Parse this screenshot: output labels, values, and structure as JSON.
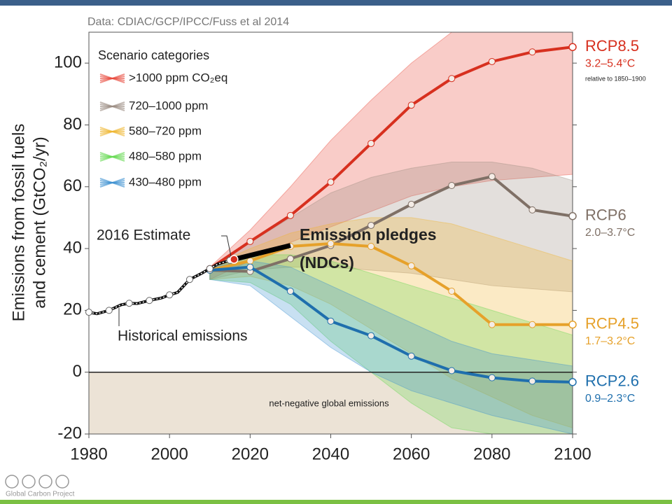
{
  "chart_data": {
    "type": "line",
    "source": "Data: CDIAC/GCP/IPCC/Fuss et al 2014",
    "ylabel": [
      "Emissions from fossil fuels",
      "and cement (GtCO₂/yr)"
    ],
    "xlim": [
      1980,
      2100
    ],
    "ylim": [
      -20,
      110
    ],
    "xticks": [
      1980,
      2000,
      2020,
      2040,
      2060,
      2080,
      2100
    ],
    "yticks": [
      -20,
      0,
      20,
      40,
      60,
      80,
      100
    ],
    "legend_title": "Scenario categories",
    "band_x": [
      2010,
      2020,
      2030,
      2040,
      2050,
      2060,
      2070,
      2080,
      2090,
      2100
    ],
    "bands": [
      {
        "name": ">1000 ppm CO₂eq",
        "color": "#e8483a",
        "low": [
          30,
          36,
          42,
          47,
          52,
          57,
          60,
          62,
          63,
          64
        ],
        "high": [
          34,
          46,
          60,
          75,
          88,
          100,
          110,
          110,
          110,
          110
        ]
      },
      {
        "name": "720–1000 ppm",
        "color": "#9a8b80",
        "low": [
          30,
          33,
          34,
          34,
          33,
          32,
          30,
          28,
          27,
          26
        ],
        "high": [
          34,
          42,
          50,
          58,
          63,
          66,
          68,
          68,
          66,
          62
        ]
      },
      {
        "name": "580–720 ppm",
        "color": "#efb52f",
        "low": [
          30,
          31,
          28,
          22,
          14,
          6,
          -2,
          -8,
          -14,
          -18
        ],
        "high": [
          34,
          40,
          45,
          48,
          50,
          50,
          48,
          44,
          40,
          36
        ]
      },
      {
        "name": "480–580 ppm",
        "color": "#63d84f",
        "low": [
          30,
          29,
          22,
          10,
          0,
          -10,
          -18,
          -20,
          -20,
          -20
        ],
        "high": [
          34,
          38,
          38,
          36,
          32,
          28,
          24,
          20,
          16,
          12
        ]
      },
      {
        "name": "430–480 ppm",
        "color": "#3a8fd0",
        "low": [
          30,
          28,
          18,
          8,
          0,
          -6,
          -10,
          -14,
          -17,
          -20
        ],
        "high": [
          34,
          36,
          34,
          28,
          22,
          16,
          10,
          6,
          4,
          2
        ]
      }
    ],
    "x": [
      2010,
      2020,
      2030,
      2040,
      2050,
      2060,
      2070,
      2080,
      2090,
      2100
    ],
    "series": [
      {
        "name": "RCP8.5",
        "range": "3.2–5.4°C",
        "note": "relative to 1850–1900",
        "color": "#d7301f",
        "values": [
          33.5,
          42.3,
          50.7,
          61.5,
          74,
          86.4,
          95,
          100.5,
          103.6,
          105.2
        ]
      },
      {
        "name": "RCP6",
        "range": "2.0–3.7°C",
        "color": "#7f7066",
        "values": [
          33,
          32.6,
          36.7,
          41,
          47.5,
          54.3,
          60.4,
          63.3,
          52.5,
          50.5
        ]
      },
      {
        "name": "RCP4.5",
        "range": "1.7–3.2°C",
        "color": "#e6a12a",
        "values": [
          33,
          36,
          40.7,
          41.6,
          40.7,
          34.4,
          26.2,
          15.4,
          15.4,
          15.4
        ]
      },
      {
        "name": "RCP2.6",
        "range": "0.9–2.3°C",
        "color": "#1f6fad",
        "values": [
          33,
          34,
          26.2,
          16.5,
          11.8,
          5.2,
          0.5,
          -1.8,
          -2.9,
          -3.2
        ]
      }
    ],
    "historical": {
      "label": "Historical emissions",
      "x": [
        1980,
        1982,
        1985,
        1988,
        1990,
        1992,
        1995,
        1998,
        2000,
        2002,
        2005,
        2008,
        2010,
        2012,
        2015
      ],
      "values": [
        19.4,
        18.9,
        20,
        21.8,
        22.3,
        22.2,
        23.2,
        24,
        25,
        25.8,
        30,
        32,
        33.5,
        35,
        36.2
      ]
    },
    "estimate": {
      "label": "2016 Estimate",
      "x": 2016,
      "value": 36.5
    },
    "pledges": {
      "label": [
        "Emission pledges",
        "(NDCs)"
      ],
      "x": [
        2016,
        2030
      ],
      "values": [
        36.5,
        41
      ]
    },
    "negative_label": "net-negative global emissions",
    "footer": "Global Carbon Project"
  }
}
